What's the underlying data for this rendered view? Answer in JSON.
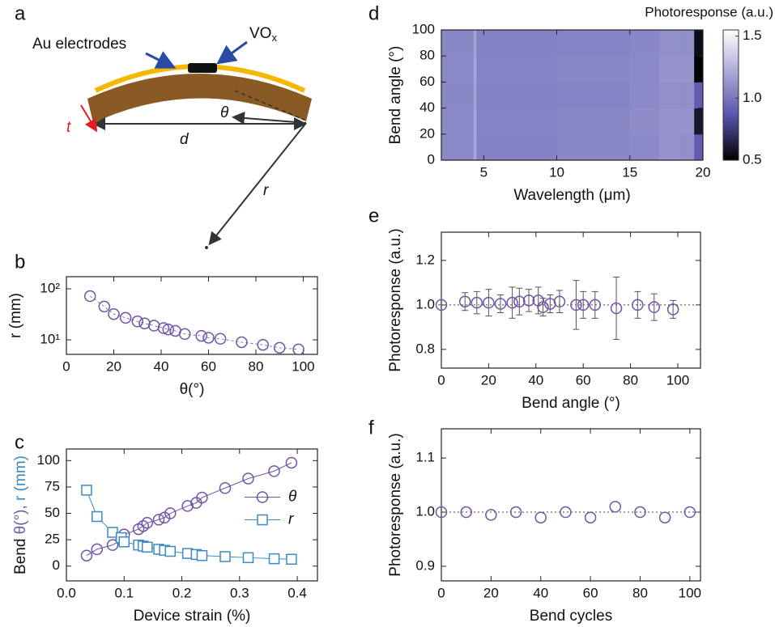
{
  "diagram": {
    "panel": "a",
    "electrodes": "Au electrodes",
    "vox": [
      "VO",
      "x"
    ],
    "theta": "θ",
    "d": "d",
    "r": "r",
    "t": "t"
  },
  "chart_data": [
    {
      "panel": "b",
      "type": "scatter",
      "xlabel": "θ(°)",
      "ylabel": "r (mm)",
      "color": "#6e55a6",
      "log_y": true,
      "x": [
        10,
        16,
        20,
        25,
        30,
        33,
        37,
        41,
        43,
        46,
        50,
        57,
        60,
        65,
        74,
        83,
        90,
        98
      ],
      "values": [
        72,
        45,
        32,
        27,
        23,
        21,
        19,
        17,
        16,
        15,
        13,
        12,
        11,
        10.5,
        9,
        8,
        7,
        6.5
      ],
      "xlim": [
        0,
        106
      ],
      "xticks": [
        0,
        20,
        40,
        60,
        80,
        100
      ],
      "ylim": [
        5.2,
        173
      ],
      "yticks": [
        {
          "value": 10,
          "label": "10¹"
        },
        {
          "value": 100,
          "label": "10²"
        }
      ]
    },
    {
      "panel": "c",
      "type": "line",
      "xlabel": "Device strain (%)",
      "ylabel_parts": [
        {
          "text": "Bend ",
          "color": "#111111"
        },
        {
          "text": "θ(°), ",
          "color": "#6e55a6"
        },
        {
          "text": "r (mm)",
          "color": "#3b8ac4"
        }
      ],
      "legend": "center right",
      "x": [
        0.035,
        0.053,
        0.08,
        0.095,
        0.1,
        0.125,
        0.133,
        0.14,
        0.16,
        0.17,
        0.18,
        0.21,
        0.225,
        0.235,
        0.275,
        0.315,
        0.36,
        0.39
      ],
      "series": [
        {
          "name": "θ",
          "color": "#6e55a6",
          "marker": "circle",
          "values": [
            10,
            16,
            20,
            25,
            30,
            35,
            38,
            41,
            44,
            46,
            50,
            57,
            60,
            65,
            74,
            83,
            90,
            98
          ]
        },
        {
          "name": "r",
          "color": "#3b8ac4",
          "marker": "square",
          "values": [
            72,
            47,
            32,
            27,
            23,
            20,
            19,
            18,
            16,
            15,
            14,
            12,
            11,
            10,
            9,
            8,
            7,
            6.5
          ]
        }
      ],
      "xlim": [
        0,
        0.435
      ],
      "xticks": [
        {
          "value": 0,
          "label": "0.0"
        },
        0.1,
        0.2,
        0.3,
        0.4
      ],
      "ylim": [
        -14,
        111
      ],
      "yticks": [
        0,
        25,
        50,
        75,
        100
      ]
    },
    {
      "panel": "d",
      "type": "heatmap",
      "xlabel": "Wavelength (μm)",
      "ylabel": "Bend angle (°)",
      "colorbar_label": "Photoresponse (a.u.)",
      "x": [
        2.1,
        4.3,
        4.5,
        10,
        15,
        17,
        18.5,
        19.4,
        20
      ],
      "y": [
        0,
        20,
        40,
        60,
        80,
        100
      ],
      "z": [
        [
          1.08,
          1.2,
          1.05,
          1.07,
          1.08,
          1.12,
          1.1,
          0.9
        ],
        [
          1.08,
          1.2,
          1.06,
          1.07,
          1.09,
          1.12,
          1.12,
          0.6
        ],
        [
          1.07,
          1.18,
          1.05,
          1.06,
          1.08,
          1.1,
          1.1,
          0.9
        ],
        [
          1.08,
          1.2,
          1.06,
          1.07,
          1.08,
          1.12,
          1.12,
          0.5
        ],
        [
          1.07,
          1.18,
          1.05,
          1.06,
          1.07,
          1.1,
          1.1,
          0.55
        ]
      ],
      "colormap": [
        "#000000",
        "#5552a8",
        "#a9a6d8",
        "#ffffff"
      ],
      "xlim": [
        2.1,
        20
      ],
      "xticks": [
        5,
        10,
        15,
        20
      ],
      "ylim": [
        0,
        100
      ],
      "yticks": [
        0,
        20,
        40,
        60,
        80,
        100
      ],
      "zlim": [
        0.5,
        1.55
      ],
      "zticks": [
        0.5,
        {
          "value": 1,
          "label": "1.0"
        },
        1.5
      ]
    },
    {
      "panel": "e",
      "type": "errorbar",
      "xlabel": "Bend angle (°)",
      "ylabel": "Photoresponse (a.u.)",
      "color": "#6e55a6",
      "hline": 1,
      "x": [
        0,
        10,
        15,
        20,
        25,
        30,
        33,
        37,
        41,
        43,
        46,
        50,
        57,
        60,
        65,
        74,
        83,
        90,
        98
      ],
      "values": [
        1.0,
        1.015,
        1.01,
        1.01,
        1.005,
        1.01,
        1.015,
        1.02,
        1.02,
        0.99,
        1.005,
        1.015,
        1.0,
        1.0,
        1.0,
        0.985,
        1.0,
        0.99,
        0.98
      ],
      "errors": [
        0,
        0.04,
        0.05,
        0.06,
        0.04,
        0.07,
        0.06,
        0.05,
        0.06,
        0.04,
        0.04,
        0.05,
        0.11,
        0.06,
        0.06,
        0.14,
        0.06,
        0.06,
        0.04
      ],
      "xlim": [
        0,
        109.6
      ],
      "xticks": [
        0,
        20,
        40,
        60,
        80,
        100
      ],
      "ylim": [
        0.716,
        1.327
      ],
      "yticks": [
        0.8,
        {
          "value": 1,
          "label": "1.0"
        },
        1.2
      ]
    },
    {
      "panel": "f",
      "type": "scatter",
      "xlabel": "Bend cycles",
      "ylabel": "Photoresponse (a.u.)",
      "color": "#6e55a6",
      "hline": 1,
      "x": [
        0,
        10,
        20,
        30,
        40,
        50,
        60,
        70,
        80,
        90,
        100
      ],
      "values": [
        1.0,
        1.0,
        0.995,
        1.0,
        0.99,
        1.0,
        0.99,
        1.01,
        1.0,
        0.99,
        1.0
      ],
      "xlim": [
        0,
        104.3
      ],
      "xticks": [
        0,
        20,
        40,
        60,
        80,
        100
      ],
      "ylim": [
        0.873,
        1.154
      ],
      "yticks": [
        0.9,
        {
          "value": 1,
          "label": "1.0"
        },
        1.1
      ]
    }
  ]
}
